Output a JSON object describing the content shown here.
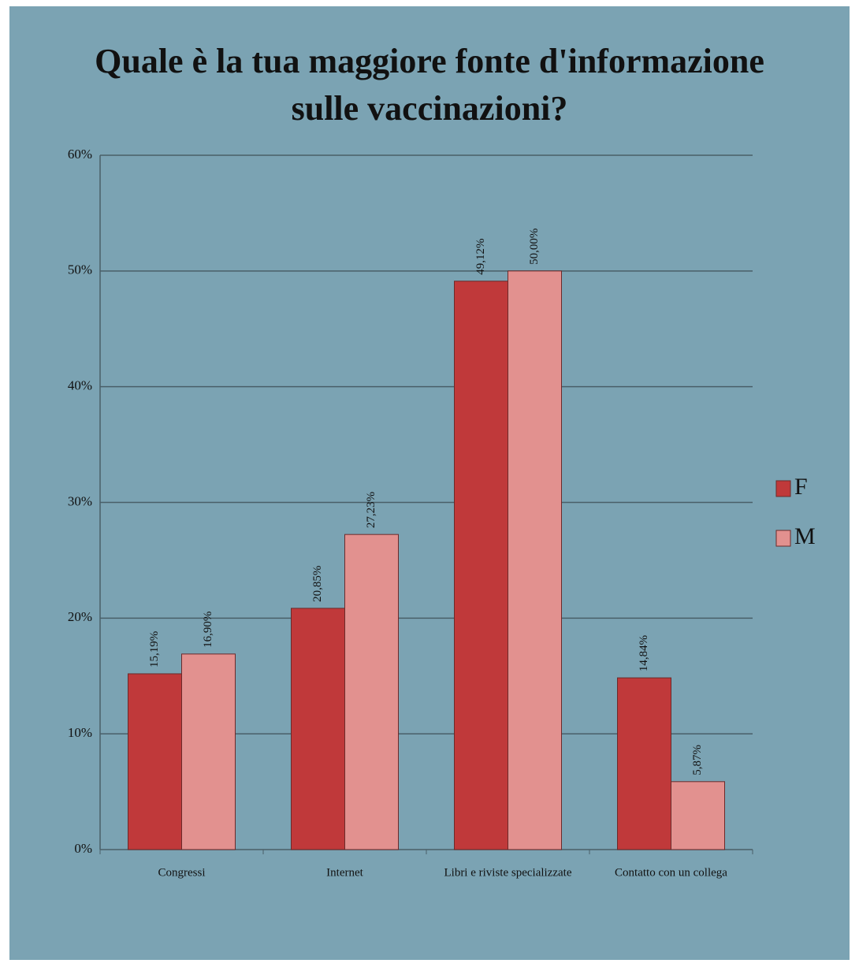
{
  "chart_data": {
    "type": "bar",
    "title": "Quale è la tua maggiore fonte d'informazione sulle vaccinazioni?",
    "categories": [
      "Congressi",
      "Internet",
      "Libri e riviste specializzate",
      "Contatto con un collega"
    ],
    "series": [
      {
        "name": "F",
        "color": "#c0393a",
        "values": [
          15.19,
          20.85,
          49.12,
          14.84
        ],
        "value_labels": [
          "15,19%",
          "20,85%",
          "49,12%",
          "14,84%"
        ]
      },
      {
        "name": "M",
        "color": "#e2918f",
        "values": [
          16.9,
          27.23,
          50.0,
          5.87
        ],
        "value_labels": [
          "16,90%",
          "27,23%",
          "50,00%",
          "5,87%"
        ]
      }
    ],
    "ylim": [
      0,
      60
    ],
    "yticks": [
      {
        "value": 0,
        "label": "0%"
      },
      {
        "value": 10,
        "label": "10%"
      },
      {
        "value": 20,
        "label": "20%"
      },
      {
        "value": 30,
        "label": "30%"
      },
      {
        "value": 40,
        "label": "40%"
      },
      {
        "value": 50,
        "label": "50%"
      },
      {
        "value": 60,
        "label": "60%"
      }
    ],
    "grid": true,
    "legend": "right"
  }
}
